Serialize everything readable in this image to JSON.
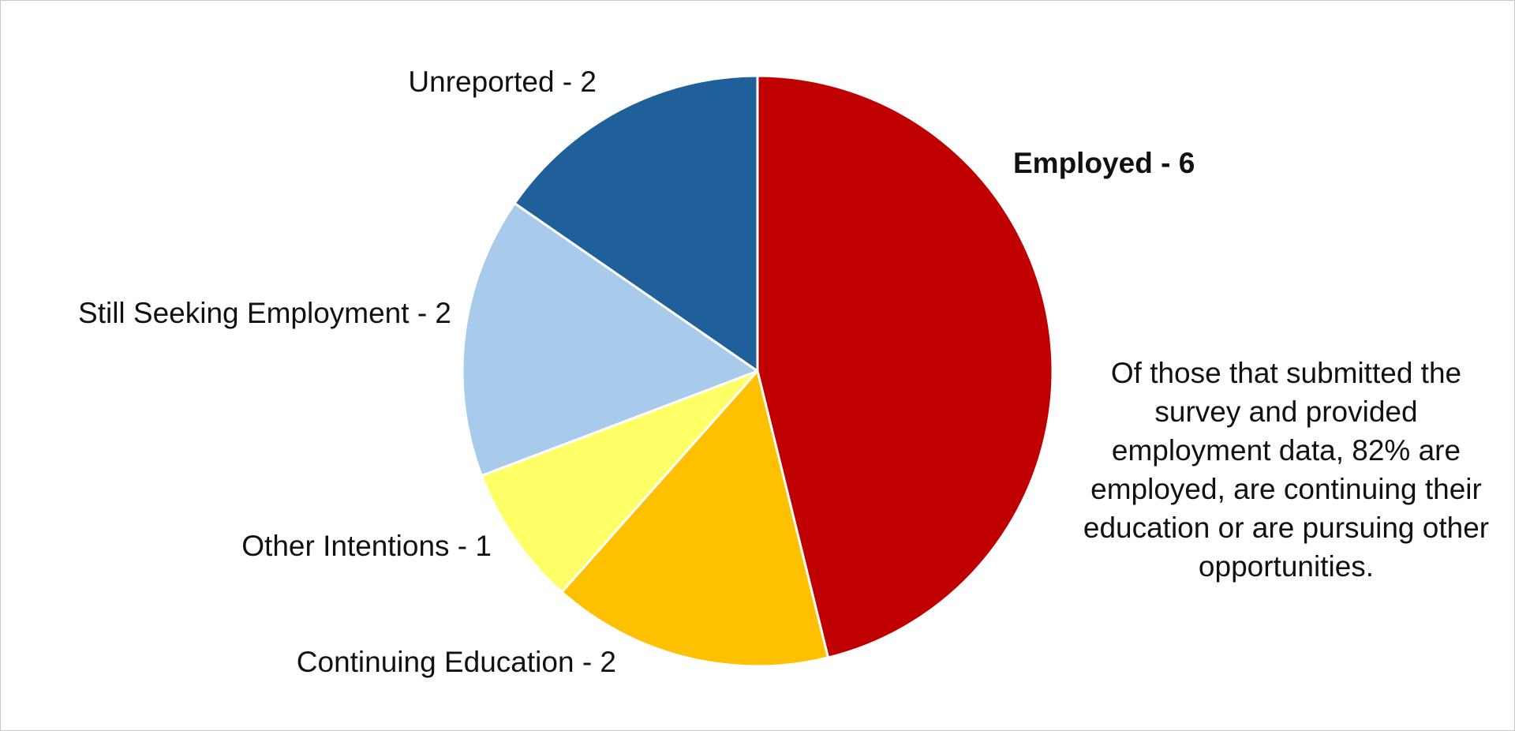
{
  "chart_data": {
    "type": "pie",
    "values": [
      6,
      2,
      1,
      2,
      2
    ],
    "value_labels": [
      "Employed - 6",
      "Continuing Education - 2",
      "Other Intentions - 1",
      "Still Seeking Employment - 2",
      "Unreported - 2"
    ],
    "colors": [
      "#c00000",
      "#ffc000",
      "#ffff66",
      "#a9cbeb",
      "#1f5f9a"
    ],
    "annotation": "Of those that submitted the survey and provided employment data, 82% are employed, are continuing their education or are pursuing other opportunities."
  }
}
